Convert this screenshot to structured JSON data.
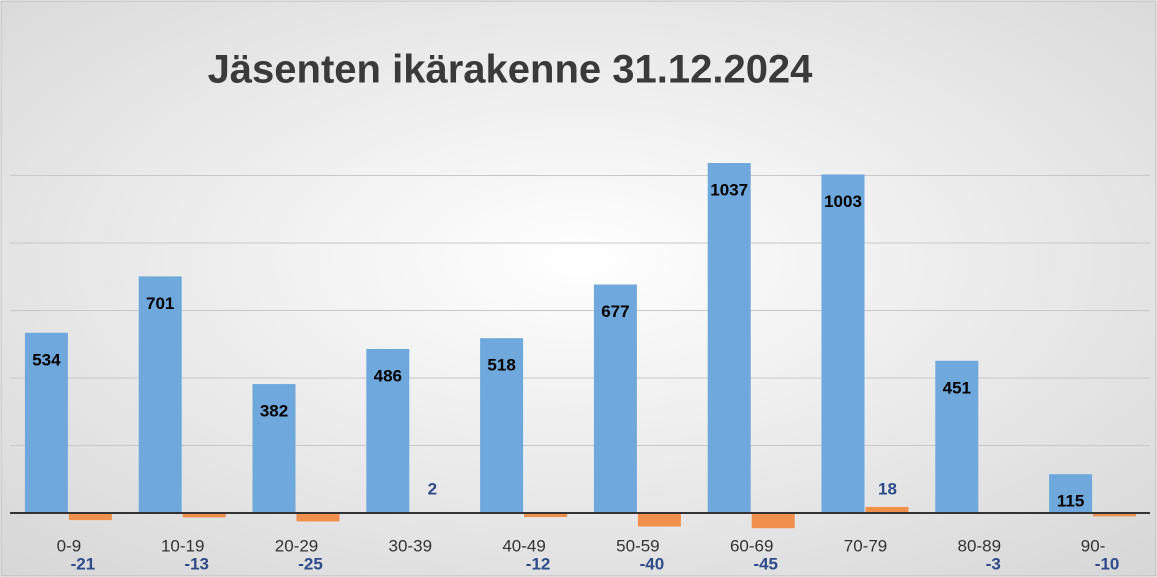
{
  "chart_data": {
    "type": "bar",
    "title": "Jäsenten ikärakenne 31.12.2024",
    "categories": [
      "0-9",
      "10-19",
      "20-29",
      "30-39",
      "40-49",
      "50-59",
      "60-69",
      "70-79",
      "80-89",
      "90-"
    ],
    "series": [
      {
        "color": "#6fa8dc",
        "values": [
          534,
          701,
          382,
          486,
          518,
          677,
          1037,
          1003,
          451,
          115
        ]
      },
      {
        "color": "#f0904c",
        "values": [
          -21,
          -13,
          -25,
          2,
          -12,
          -40,
          -45,
          18,
          -3,
          -10
        ]
      }
    ],
    "ylim": [
      -100,
      1100
    ],
    "yticks": [
      0,
      200,
      400,
      600,
      800,
      1000
    ],
    "grid": true
  }
}
